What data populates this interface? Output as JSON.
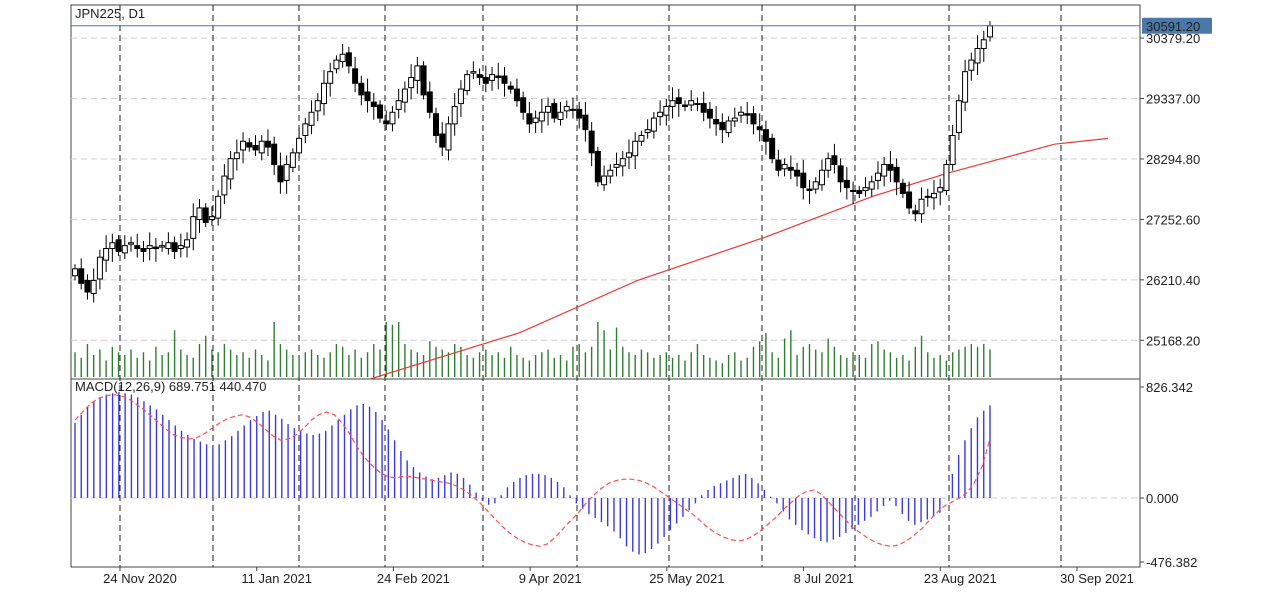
{
  "header": {
    "symbol_label": "JPN225, D1",
    "macd_label": "MACD(12,26,9) 689.751 440.470",
    "current_price_label": "30591.20"
  },
  "colors": {
    "bull_candle": "#ffffff",
    "bear_candle": "#000000",
    "candle_outline": "#000000",
    "ma_line": "#e53935",
    "volume": "#2e7d32",
    "macd_hist": "#3a3adf",
    "macd_signal": "#ff4d4d",
    "price_line": "#4a78a8",
    "price_tag_bg": "#4a78a8",
    "price_tag_text": "#ffffff"
  },
  "chart_data": [
    {
      "type": "candlestick",
      "title": "JPN225, D1",
      "price_axis_ticks": [
        "30379.20",
        "29337.00",
        "28294.80",
        "27252.60",
        "26210.40",
        "25168.20"
      ],
      "ylim": [
        24500,
        30950
      ],
      "current_price": 30591.2,
      "date_ticks": [
        "24 Nov 2020",
        "11 Jan 2021",
        "24 Feb 2021",
        "9 Apr 2021",
        "25 May 2021",
        "8 Jul 2021",
        "23 Aug 2021",
        "30 Sep 2021"
      ],
      "closes": [
        26400,
        26150,
        26000,
        26200,
        26600,
        26750,
        26850,
        26700,
        26800,
        26850,
        26750,
        26700,
        26800,
        26750,
        26800,
        26850,
        26700,
        26800,
        26900,
        27300,
        27450,
        27200,
        27300,
        27650,
        28000,
        28300,
        28400,
        28600,
        28500,
        28450,
        28600,
        28500,
        28200,
        27900,
        28200,
        28400,
        28650,
        28900,
        29100,
        29300,
        29600,
        29800,
        30000,
        30100,
        29900,
        29600,
        29400,
        29300,
        29200,
        29000,
        28900,
        29100,
        29300,
        29500,
        29700,
        29900,
        29400,
        29100,
        28700,
        28500,
        28900,
        29200,
        29500,
        29750,
        29800,
        29700,
        29600,
        29750,
        29700,
        29600,
        29500,
        29300,
        29100,
        28900,
        29000,
        29100,
        29200,
        29000,
        29100,
        29200,
        29150,
        29000,
        28800,
        28400,
        27900,
        28000,
        28100,
        28200,
        28300,
        28400,
        28600,
        28700,
        28800,
        29000,
        29100,
        29200,
        29300,
        29250,
        29200,
        29300,
        29250,
        29100,
        29000,
        28900,
        28800,
        28950,
        29000,
        29100,
        29050,
        28900,
        28800,
        28600,
        28300,
        28100,
        28200,
        28100,
        28000,
        27800,
        27750,
        27900,
        28100,
        28300,
        28200,
        27900,
        27800,
        27750,
        27700,
        27800,
        27900,
        28050,
        28200,
        28100,
        27900,
        27700,
        27450,
        27350,
        27600,
        27650,
        27700,
        27800,
        28200,
        28700,
        29300,
        29800,
        30000,
        30200,
        30350,
        30591.2
      ],
      "moving_average": {
        "points": [
          [
            0.28,
            24500
          ],
          [
            0.42,
            25300
          ],
          [
            0.53,
            26200
          ],
          [
            0.65,
            26950
          ],
          [
            0.75,
            27650
          ],
          [
            0.82,
            28050
          ],
          [
            0.88,
            28350
          ],
          [
            0.92,
            28550
          ],
          [
            0.97,
            28650
          ]
        ]
      },
      "volume_relative": [
        0.45,
        0.35,
        0.6,
        0.4,
        0.5,
        0.3,
        0.55,
        0.45,
        0.4,
        0.5,
        0.35,
        0.45,
        0.3,
        0.55,
        0.4,
        0.45,
        0.85,
        0.5,
        0.4,
        0.35,
        0.6,
        0.75,
        0.5,
        0.45,
        0.6,
        0.5,
        0.4,
        0.45,
        0.35,
        0.5,
        0.4,
        0.3,
        1.0,
        0.6,
        0.5,
        0.4,
        0.35,
        0.45,
        0.5,
        0.4,
        0.35,
        0.45,
        0.6,
        0.55,
        0.4,
        0.5,
        0.35,
        0.45,
        0.6,
        0.5,
        1.0,
        0.95,
        1.0,
        0.6,
        0.5,
        0.45,
        0.4,
        0.65,
        0.55,
        0.5,
        0.45,
        0.6,
        0.55,
        0.4,
        0.35,
        0.45,
        0.5,
        0.4,
        0.45,
        0.35,
        0.55,
        0.4,
        0.35,
        0.3,
        0.4,
        0.45,
        0.5,
        0.35,
        0.4,
        0.3,
        0.55,
        0.6,
        0.45,
        0.55,
        1.0,
        0.85,
        0.5,
        0.9,
        0.55,
        0.45,
        0.4,
        0.5,
        0.45,
        0.35,
        0.4,
        0.45,
        0.35,
        0.4,
        0.3,
        0.45,
        0.6,
        0.4,
        0.35,
        0.3,
        0.25,
        0.4,
        0.45,
        0.3,
        0.35,
        0.55,
        0.65,
        0.8,
        0.45,
        0.35,
        0.7,
        0.85,
        0.4,
        0.55,
        0.6,
        0.5,
        0.45,
        0.7,
        0.55,
        0.4,
        0.35,
        0.45,
        0.4,
        0.35,
        0.6,
        0.65,
        0.5,
        0.45,
        0.35,
        0.4,
        0.3,
        0.55,
        0.75,
        0.45,
        0.35,
        0.4,
        0.3,
        0.45,
        0.5,
        0.55,
        0.6,
        0.55,
        0.6,
        0.5
      ]
    },
    {
      "type": "bar",
      "title": "MACD(12,26,9) 689.751 440.470",
      "axis_ticks": [
        "826.342",
        "0.000",
        "-476.382"
      ],
      "ylim": [
        -476.382,
        826.342
      ],
      "histogram": [
        560,
        620,
        680,
        720,
        750,
        770,
        780,
        790,
        780,
        770,
        750,
        720,
        690,
        660,
        620,
        580,
        540,
        500,
        470,
        440,
        420,
        400,
        380,
        400,
        430,
        460,
        500,
        540,
        580,
        610,
        640,
        650,
        620,
        590,
        550,
        520,
        500,
        480,
        470,
        480,
        500,
        540,
        580,
        620,
        660,
        690,
        700,
        680,
        640,
        580,
        510,
        430,
        350,
        280,
        230,
        190,
        160,
        140,
        150,
        170,
        190,
        180,
        150,
        100,
        40,
        -20,
        -50,
        -40,
        20,
        80,
        120,
        150,
        170,
        180,
        180,
        170,
        150,
        120,
        80,
        20,
        -40,
        -80,
        -120,
        -150,
        -180,
        -210,
        -250,
        -300,
        -360,
        -400,
        -420,
        -410,
        -380,
        -340,
        -290,
        -240,
        -190,
        -140,
        -90,
        -40,
        20,
        60,
        90,
        110,
        130,
        150,
        170,
        180,
        150,
        110,
        60,
        10,
        -40,
        -100,
        -160,
        -200,
        -240,
        -270,
        -300,
        -320,
        -330,
        -310,
        -290,
        -260,
        -230,
        -200,
        -170,
        -140,
        -100,
        -60,
        -20,
        -60,
        -120,
        -170,
        -200,
        -180,
        -160,
        -140,
        -110,
        0,
        180,
        320,
        430,
        520,
        600,
        650,
        689.751
      ],
      "signal": [
        580,
        640,
        700,
        740,
        760,
        770,
        760,
        740,
        700,
        660,
        610,
        560,
        510,
        470,
        450,
        440,
        450,
        480,
        520,
        560,
        590,
        610,
        620,
        600,
        560,
        510,
        460,
        430,
        440,
        470,
        520,
        580,
        620,
        640,
        620,
        560,
        480,
        380,
        300,
        240,
        190,
        160,
        150,
        160,
        160,
        150,
        140,
        130,
        120,
        110,
        90,
        60,
        20,
        -30,
        -90,
        -150,
        -210,
        -260,
        -300,
        -330,
        -350,
        -360,
        -340,
        -290,
        -230,
        -170,
        -110,
        -40,
        20,
        70,
        110,
        130,
        140,
        140,
        130,
        110,
        80,
        40,
        0,
        -40,
        -80,
        -120,
        -170,
        -220,
        -260,
        -290,
        -310,
        -320,
        -310,
        -280,
        -240,
        -190,
        -140,
        -80,
        -30,
        20,
        50,
        60,
        20,
        -40,
        -100,
        -160,
        -220,
        -260,
        -300,
        -330,
        -350,
        -360,
        -350,
        -320,
        -280,
        -230,
        -170,
        -110,
        -60,
        -30,
        0,
        40,
        120,
        240,
        440.47
      ]
    }
  ]
}
